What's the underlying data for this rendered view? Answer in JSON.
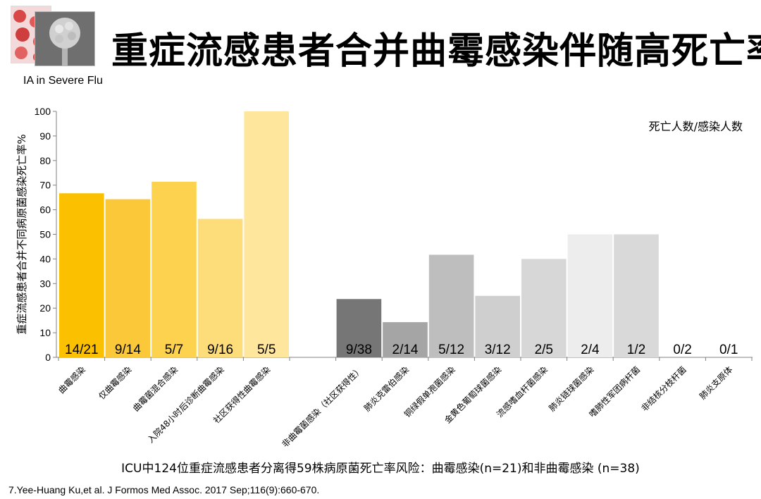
{
  "title": "重症流感患者合并曲霉感染伴随高死亡率",
  "subtitle": "IA in Severe Flu",
  "caption": "ICU中124位重症流感患者分离得59株病原菌死亡率风险：曲霉感染(n=21)和非曲霉感染 (n=38)",
  "reference": "7.Yee-Huang Ku,et al. J Formos Med Assoc. 2017 Sep;116(9):660-670.",
  "chart_data": {
    "type": "bar",
    "ylabel": "重症流感患者合并不同病原菌感染死亡率%",
    "annotation": "死亡人数/感染人数",
    "ylim": [
      0,
      100
    ],
    "yticks": [
      0,
      10,
      20,
      30,
      40,
      50,
      60,
      70,
      80,
      90,
      100
    ],
    "grid": false,
    "categories": [
      "曲霉感染",
      "仅曲霉感染",
      "曲霉菌混合感染",
      "入院48小时后诊断曲霉感染",
      "社区获得性曲霉感染",
      "",
      "非曲霉菌感染（社区获得性）",
      "肺炎克雷伯感染",
      "铜绿假单孢菌感染",
      "金黄色葡萄球菌感染",
      "流感嗜血杆菌感染",
      "肺炎链球菌感染",
      "嗜肺性军团病杆菌",
      "非结核分枝杆菌",
      "肺炎支原体"
    ],
    "values": [
      66.7,
      64.3,
      71.4,
      56.3,
      100,
      null,
      23.7,
      14.3,
      41.7,
      25.0,
      40.0,
      50.0,
      50.0,
      0,
      0
    ],
    "data_labels": [
      "14/21",
      "9/14",
      "5/7",
      "9/16",
      "5/5",
      "",
      "9/38",
      "2/14",
      "5/12",
      "3/12",
      "2/5",
      "2/4",
      "1/2",
      "0/2",
      "0/1"
    ],
    "colors": [
      "#fbc000",
      "#fbc83a",
      "#fcd24e",
      "#fddd7a",
      "#fee69c",
      "",
      "#767676",
      "#a5a5a5",
      "#bebebe",
      "#cfcfcf",
      "#d7d7d7",
      "#ededed",
      "#d9d9d9",
      "#d9d9d9",
      "#d9d9d9"
    ]
  }
}
